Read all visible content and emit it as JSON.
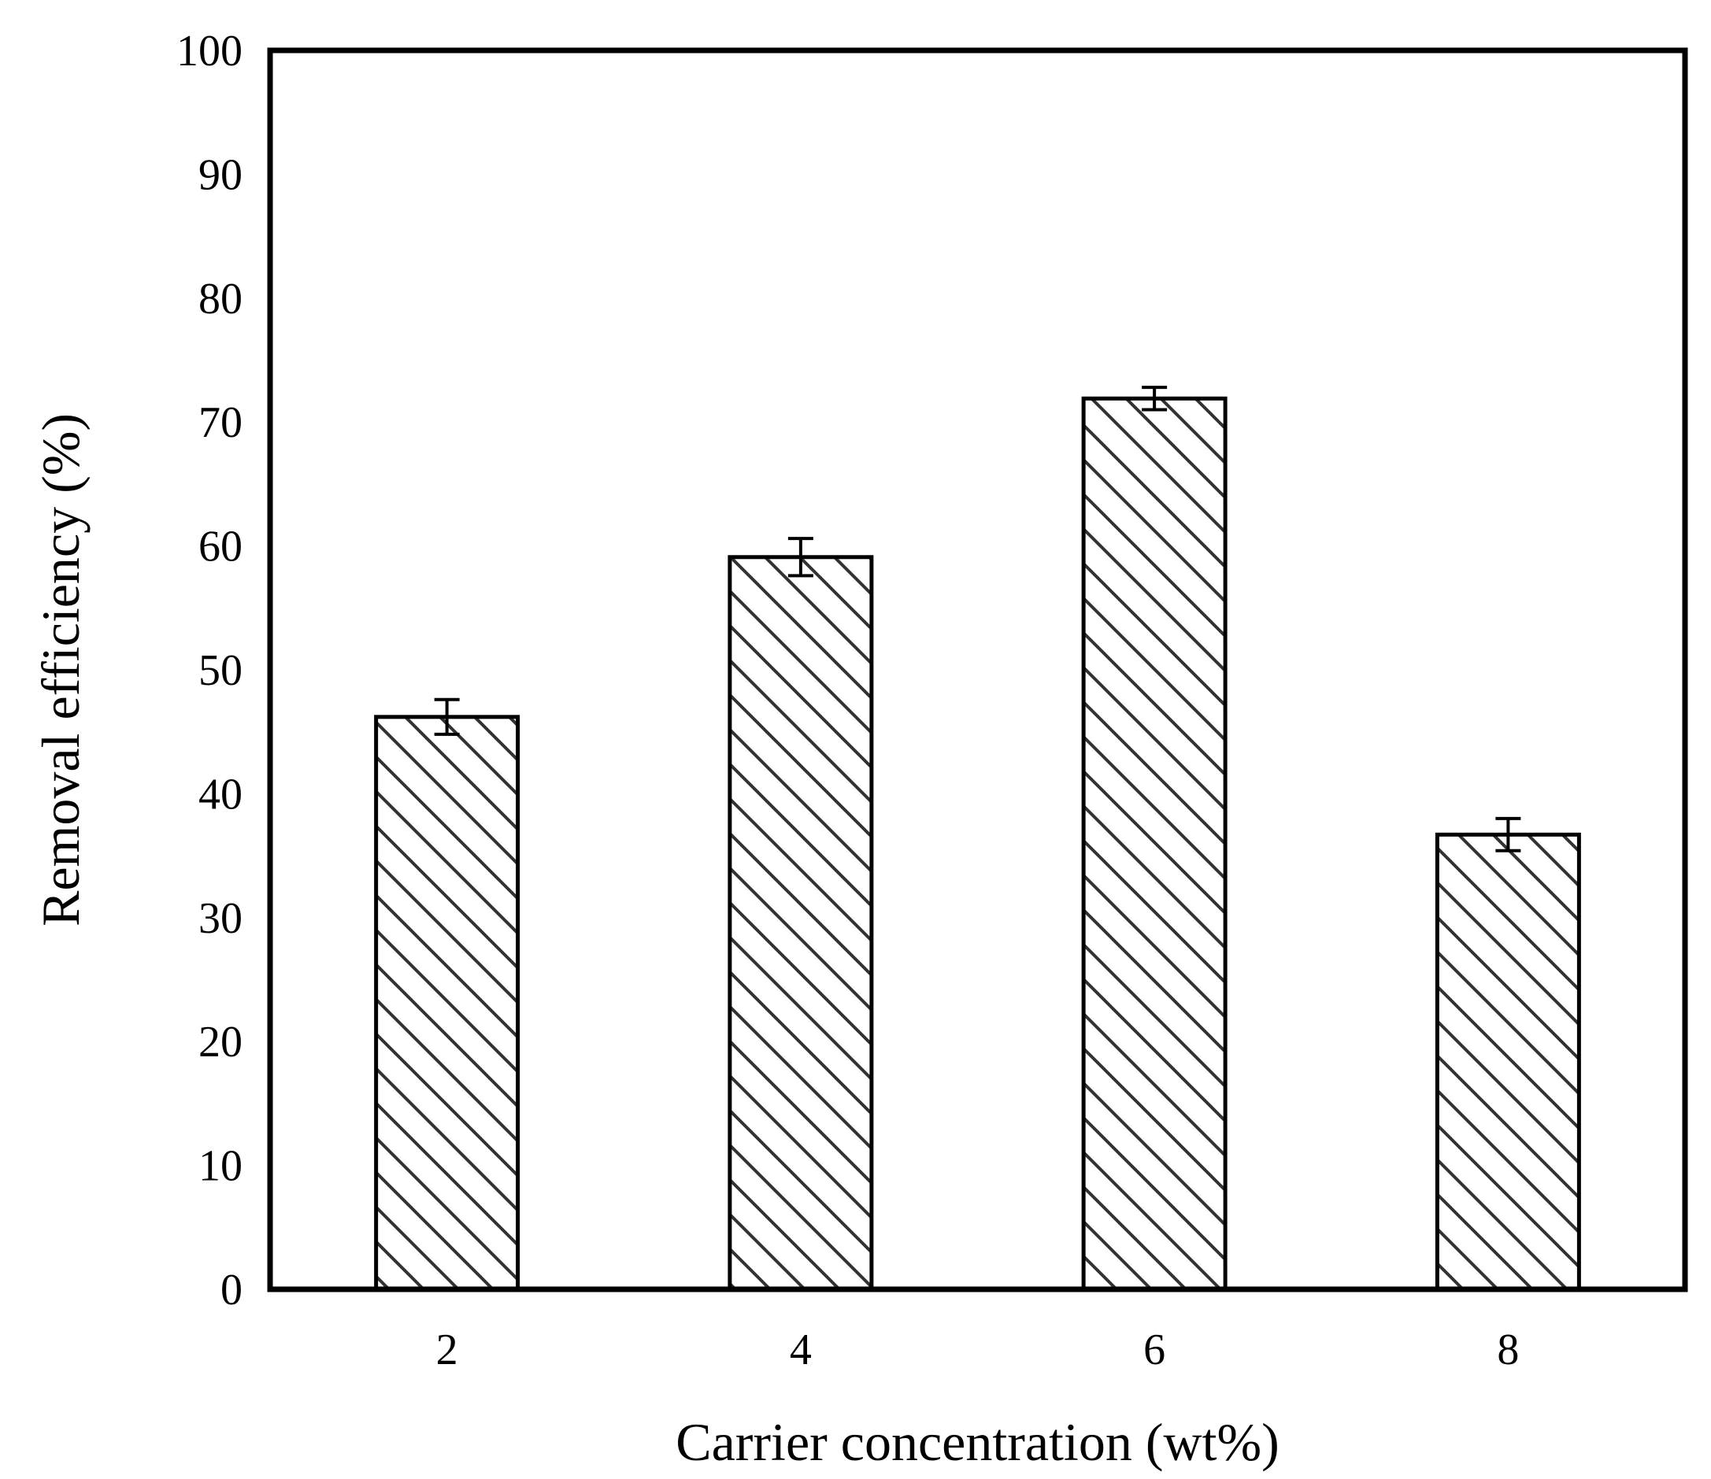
{
  "chart_data": {
    "type": "bar",
    "categories": [
      "2",
      "4",
      "6",
      "8"
    ],
    "values": [
      46.2,
      59.1,
      71.9,
      36.7
    ],
    "errors": [
      1.4,
      1.5,
      0.9,
      1.3
    ],
    "xlabel": "Carrier concentration (wt%)",
    "ylabel": "Removal efficiency (%)",
    "ylim": [
      0,
      100
    ],
    "yticks": [
      "0",
      "10",
      "20",
      "30",
      "40",
      "50",
      "60",
      "70",
      "80",
      "90",
      "100"
    ],
    "grid": false,
    "legend": "none",
    "bar_fill": "hatched",
    "colors": {
      "stroke": "#000000",
      "fill": "#ffffff",
      "hatch": "#333333"
    }
  }
}
